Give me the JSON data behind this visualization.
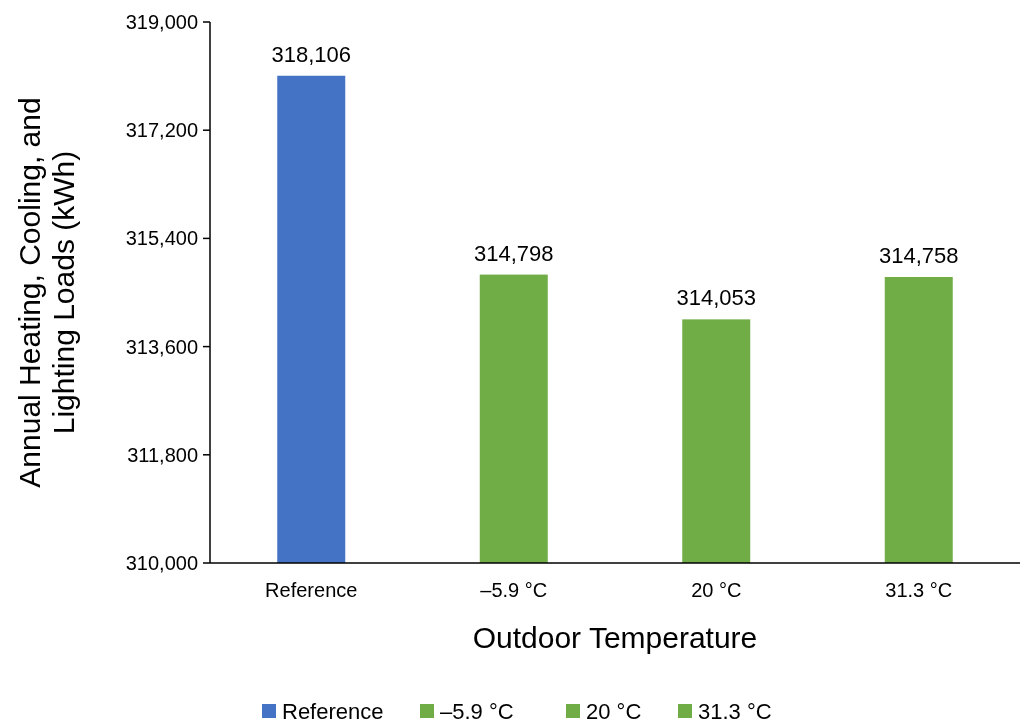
{
  "chart_data": {
    "type": "bar",
    "xlabel": "Outdoor Temperature",
    "ylabel": "Annual Heating, Cooling, and Lighting Loads (kWh)",
    "categories": [
      "Reference",
      "–5.9 °C",
      "20 °C",
      "31.3 °C"
    ],
    "series": [
      {
        "name": "Reference",
        "color": "#4472c4",
        "values": [
          318106,
          null,
          null,
          null
        ],
        "value_labels": [
          "318,106",
          null,
          null,
          null
        ]
      },
      {
        "name": "–5.9 °C",
        "color": "#70ad47",
        "values": [
          null,
          314798,
          null,
          null
        ],
        "value_labels": [
          null,
          "314,798",
          null,
          null
        ]
      },
      {
        "name": "20 °C",
        "color": "#70ad47",
        "values": [
          null,
          null,
          314053,
          null
        ],
        "value_labels": [
          null,
          null,
          "314,053",
          null
        ]
      },
      {
        "name": "31.3 °C",
        "color": "#70ad47",
        "values": [
          null,
          null,
          null,
          314758
        ],
        "value_labels": [
          null,
          null,
          null,
          "314,758"
        ]
      }
    ],
    "ylim": [
      310000,
      319000
    ],
    "yticks": [
      {
        "value": 310000,
        "label": "310,000"
      },
      {
        "value": 311800,
        "label": "311,800"
      },
      {
        "value": 313600,
        "label": "313,600"
      },
      {
        "value": 315400,
        "label": "315,400"
      },
      {
        "value": 317200,
        "label": "317,200"
      },
      {
        "value": 319000,
        "label": "319,000"
      }
    ],
    "legend": "bottom",
    "grid": false
  }
}
